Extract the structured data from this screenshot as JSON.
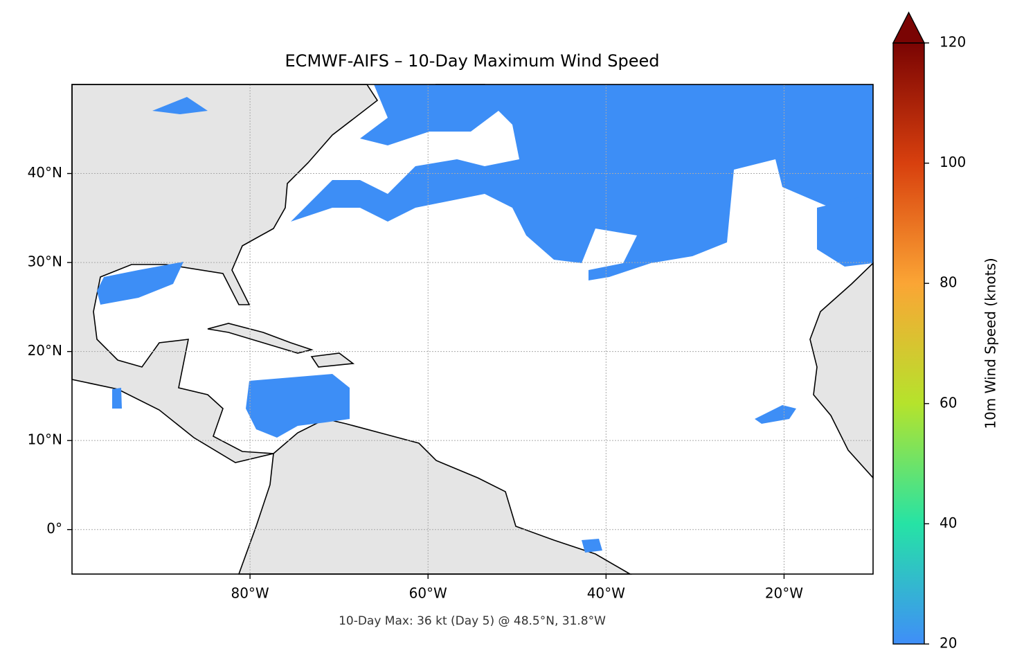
{
  "chart_data": {
    "type": "map",
    "title": "ECMWF-AIFS – 10-Day Maximum Wind Speed",
    "annotation": "10-Day Max: 36 kt (Day 5) @ 48.5°N, 31.8°W",
    "xlim": [
      -100,
      -10
    ],
    "ylim": [
      -5,
      50
    ],
    "xticks": [
      {
        "value": -80,
        "label": "80°W"
      },
      {
        "value": -60,
        "label": "60°W"
      },
      {
        "value": -40,
        "label": "40°W"
      },
      {
        "value": -20,
        "label": "20°W"
      }
    ],
    "yticks": [
      {
        "value": 0,
        "label": "0°"
      },
      {
        "value": 10,
        "label": "10°N"
      },
      {
        "value": 20,
        "label": "20°N"
      },
      {
        "value": 30,
        "label": "30°N"
      },
      {
        "value": 40,
        "label": "40°N"
      }
    ],
    "grid": true,
    "colorbar": {
      "label": "10m Wind Speed (knots)",
      "lim": [
        20,
        120
      ],
      "ticks": [
        20,
        40,
        60,
        80,
        100,
        120
      ],
      "colors": [
        "#3f8ef8",
        "#26e3a5",
        "#b5e32c",
        "#fba535",
        "#d8400e",
        "#7a0403"
      ],
      "extend": "max"
    }
  }
}
